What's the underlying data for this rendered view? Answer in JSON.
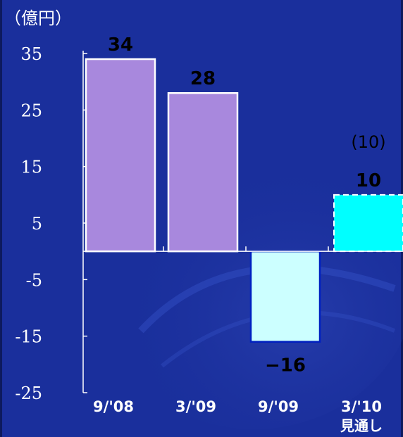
{
  "chart_data": {
    "type": "bar",
    "unit_label": "（億円）",
    "categories": [
      "9/'08",
      "3/'09",
      "9/'09",
      "3/'10"
    ],
    "category_sublabels": [
      "",
      "",
      "",
      "見通し"
    ],
    "values": [
      34,
      28,
      -16,
      10
    ],
    "value_labels": [
      "34",
      "28",
      "−16",
      "10"
    ],
    "extra_labels": [
      "",
      "",
      "",
      "(10)"
    ],
    "yticks": [
      35,
      25,
      15,
      5,
      -5,
      -15,
      -25
    ],
    "ylim": [
      -25,
      35
    ],
    "bar_styles": [
      {
        "fill": "#a888dd",
        "stroke": "#ffffff",
        "dashed": false
      },
      {
        "fill": "#a888dd",
        "stroke": "#ffffff",
        "dashed": false
      },
      {
        "fill": "#ccffff",
        "stroke": "#0020c0",
        "dashed": false
      },
      {
        "fill": "#00ffff",
        "stroke": "#ffffff",
        "dashed": true
      }
    ],
    "colors": {
      "background": "#1a2f9c",
      "axis": "#ffffff",
      "text": "#ffffff",
      "value_label": "#000000"
    }
  }
}
